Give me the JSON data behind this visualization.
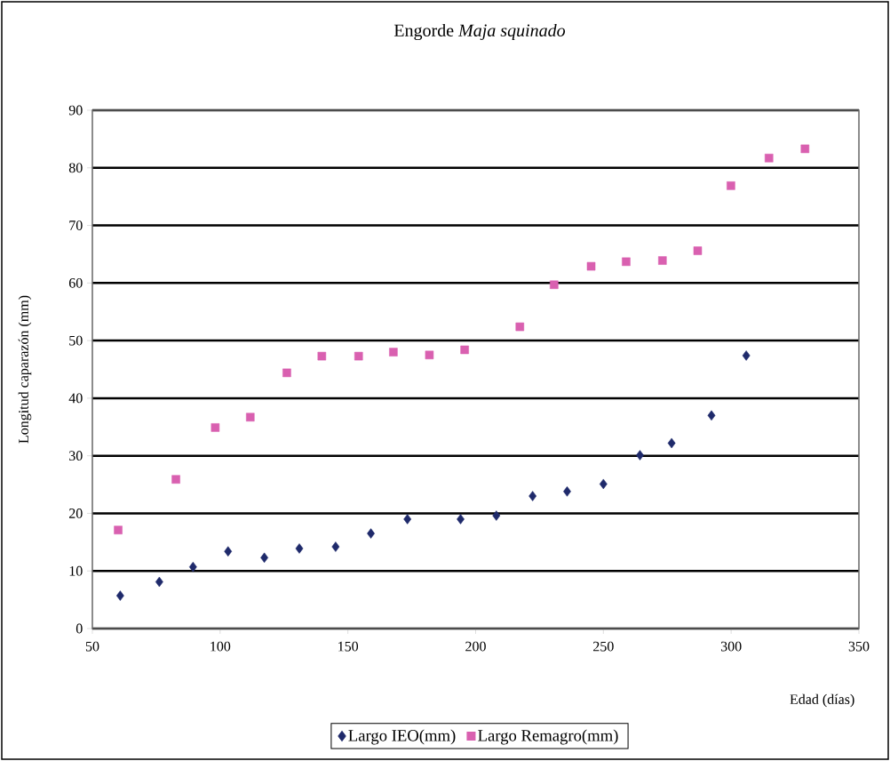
{
  "chart_data": {
    "type": "scatter",
    "title": "Engorde *Maja squinado*",
    "xlabel": "Edad (días)",
    "ylabel": "Longitud caparazón (mm)",
    "xlim": [
      50,
      350
    ],
    "xticks": [
      50,
      100,
      150,
      200,
      250,
      300,
      350
    ],
    "ylim": [
      0,
      90
    ],
    "yticks": [
      0,
      10,
      20,
      30,
      40,
      50,
      60,
      70,
      80,
      90
    ],
    "grid": "y",
    "legend": "bottom",
    "series": [
      {
        "name": "Largo IEO(mm)",
        "color": "#1f2a6b",
        "marker": "diamond",
        "x": [
          60.9,
          76.2,
          89.4,
          103.1,
          117.3,
          131.0,
          145.2,
          159.0,
          173.3,
          194.1,
          208.1,
          222.3,
          235.8,
          250.0,
          264.3,
          276.7,
          292.3,
          305.9
        ],
        "values": [
          5.7,
          8.1,
          10.7,
          13.4,
          12.3,
          13.9,
          14.2,
          16.5,
          19.0,
          19.0,
          19.6,
          23.0,
          23.8,
          25.1,
          30.1,
          32.2,
          37.0,
          47.4
        ]
      },
      {
        "name": "Largo Remagro(mm)",
        "color": "#d960b0",
        "marker": "square",
        "x": [
          60.1,
          82.7,
          98.1,
          111.8,
          126.1,
          139.8,
          154.2,
          167.8,
          181.9,
          195.7,
          217.3,
          230.7,
          245.2,
          258.9,
          273.1,
          286.9,
          299.9,
          314.8,
          328.9
        ],
        "values": [
          17.1,
          25.9,
          34.9,
          36.7,
          44.4,
          47.3,
          47.3,
          48.0,
          47.5,
          48.4,
          52.4,
          59.7,
          62.9,
          63.7,
          63.9,
          65.6,
          76.9,
          81.7,
          83.3
        ]
      }
    ]
  }
}
